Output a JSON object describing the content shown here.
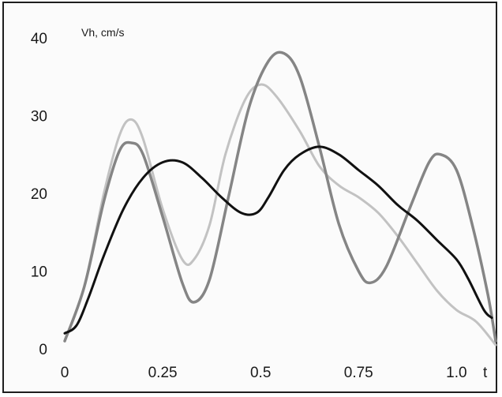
{
  "chart_data": {
    "type": "line",
    "ylabel": "Vh, cm/s",
    "xlabel": "t",
    "xlim": [
      0,
      1.1
    ],
    "ylim": [
      0,
      40
    ],
    "x_ticks": [
      "0",
      "0.25",
      "0.5",
      "0.75",
      "1.0"
    ],
    "y_ticks": [
      "0",
      "10",
      "20",
      "30",
      "40"
    ],
    "grid": false,
    "legend": "none",
    "series": [
      {
        "color": "#c2c2c2",
        "points": [
          [
            0.0,
            1.0
          ],
          [
            0.05,
            8.0
          ],
          [
            0.1,
            20.0
          ],
          [
            0.14,
            27.5
          ],
          [
            0.17,
            29.5
          ],
          [
            0.2,
            27.0
          ],
          [
            0.25,
            18.0
          ],
          [
            0.3,
            11.5
          ],
          [
            0.33,
            11.5
          ],
          [
            0.37,
            16.0
          ],
          [
            0.41,
            25.0
          ],
          [
            0.46,
            32.0
          ],
          [
            0.5,
            34.0
          ],
          [
            0.54,
            32.5
          ],
          [
            0.6,
            28.0
          ],
          [
            0.65,
            23.5
          ],
          [
            0.7,
            21.0
          ],
          [
            0.75,
            19.5
          ],
          [
            0.8,
            17.5
          ],
          [
            0.85,
            14.5
          ],
          [
            0.9,
            11.0
          ],
          [
            0.95,
            7.5
          ],
          [
            1.0,
            5.0
          ],
          [
            1.05,
            3.5
          ],
          [
            1.1,
            0.5
          ]
        ]
      },
      {
        "color": "#858585",
        "points": [
          [
            0.0,
            1.0
          ],
          [
            0.05,
            8.0
          ],
          [
            0.1,
            19.0
          ],
          [
            0.14,
            25.5
          ],
          [
            0.17,
            26.5
          ],
          [
            0.2,
            25.0
          ],
          [
            0.25,
            17.0
          ],
          [
            0.3,
            8.5
          ],
          [
            0.33,
            6.0
          ],
          [
            0.37,
            9.0
          ],
          [
            0.42,
            20.0
          ],
          [
            0.47,
            31.0
          ],
          [
            0.52,
            37.0
          ],
          [
            0.56,
            38.0
          ],
          [
            0.6,
            35.0
          ],
          [
            0.65,
            26.0
          ],
          [
            0.7,
            16.0
          ],
          [
            0.75,
            10.0
          ],
          [
            0.78,
            8.5
          ],
          [
            0.82,
            10.5
          ],
          [
            0.88,
            18.0
          ],
          [
            0.93,
            24.0
          ],
          [
            0.96,
            25.0
          ],
          [
            1.0,
            23.0
          ],
          [
            1.04,
            16.0
          ],
          [
            1.08,
            7.0
          ],
          [
            1.1,
            1.0
          ]
        ]
      },
      {
        "color": "#111111",
        "points": [
          [
            0.0,
            2.0
          ],
          [
            0.03,
            3.0
          ],
          [
            0.06,
            6.5
          ],
          [
            0.1,
            12.0
          ],
          [
            0.15,
            18.0
          ],
          [
            0.2,
            22.0
          ],
          [
            0.25,
            24.0
          ],
          [
            0.3,
            24.0
          ],
          [
            0.35,
            22.0
          ],
          [
            0.4,
            19.5
          ],
          [
            0.45,
            17.5
          ],
          [
            0.49,
            17.5
          ],
          [
            0.52,
            19.5
          ],
          [
            0.56,
            23.0
          ],
          [
            0.6,
            25.0
          ],
          [
            0.65,
            26.0
          ],
          [
            0.7,
            25.0
          ],
          [
            0.75,
            23.0
          ],
          [
            0.8,
            21.0
          ],
          [
            0.85,
            18.5
          ],
          [
            0.9,
            16.5
          ],
          [
            0.95,
            14.0
          ],
          [
            1.0,
            11.5
          ],
          [
            1.03,
            9.0
          ],
          [
            1.07,
            5.0
          ],
          [
            1.09,
            4.0
          ]
        ]
      }
    ]
  }
}
